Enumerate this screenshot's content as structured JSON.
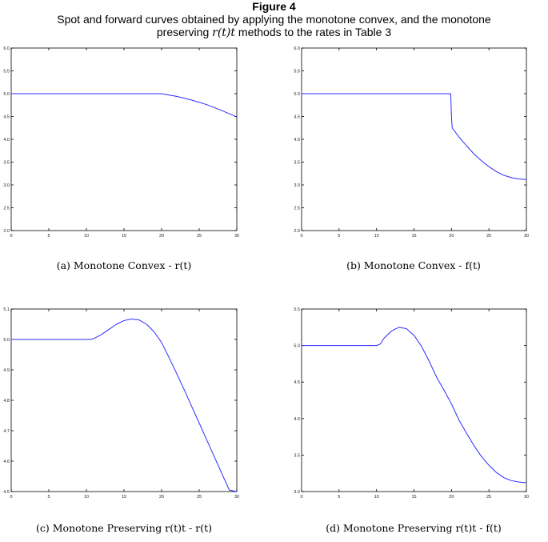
{
  "figure": {
    "title": "Figure 4",
    "caption_line1": "Spot and forward curves obtained by applying the monotone convex, and the monotone",
    "caption_line2_pre": "preserving ",
    "caption_line2_math": "r(t)t",
    "caption_line2_post": " methods to the rates in Table 3"
  },
  "colors": {
    "line": "#2b2bff",
    "axis": "#000000"
  },
  "chart_data": [
    {
      "type": "line",
      "caption": "(a) Monotone Convex - r(t)",
      "xlim": [
        0,
        30
      ],
      "ylim": [
        2.0,
        6.0
      ],
      "xticks": [
        0,
        5,
        10,
        15,
        20,
        25,
        30
      ],
      "yticks": [
        2.0,
        2.5,
        3.0,
        3.5,
        4.0,
        4.5,
        5.0,
        5.5,
        6.0
      ],
      "x": [
        0,
        5,
        10,
        15,
        20,
        21,
        22,
        24,
        26,
        28,
        30
      ],
      "series": [
        {
          "values": [
            5.0,
            5.0,
            5.0,
            5.0,
            5.0,
            4.97,
            4.94,
            4.86,
            4.76,
            4.63,
            4.49
          ]
        }
      ]
    },
    {
      "type": "line",
      "caption": "(b) Monotone Convex - f(t)",
      "xlim": [
        0,
        30
      ],
      "ylim": [
        2.0,
        6.0
      ],
      "xticks": [
        0,
        5,
        10,
        15,
        20,
        25,
        30
      ],
      "yticks": [
        2.0,
        2.5,
        3.0,
        3.5,
        4.0,
        4.5,
        5.0,
        5.5,
        6.0
      ],
      "x": [
        0,
        5,
        10,
        15,
        19.9,
        20,
        20.1,
        21,
        22,
        23,
        24,
        25,
        26,
        27,
        28,
        29,
        30
      ],
      "series": [
        {
          "values": [
            5.0,
            5.0,
            5.0,
            5.0,
            5.0,
            4.5,
            4.25,
            4.05,
            3.86,
            3.68,
            3.53,
            3.4,
            3.29,
            3.21,
            3.16,
            3.13,
            3.12
          ]
        }
      ]
    },
    {
      "type": "line",
      "caption": "(c) Monotone Preserving r(t)t - r(t)",
      "xlim": [
        0,
        30
      ],
      "ylim": [
        4.5,
        5.1
      ],
      "xticks": [
        0,
        5,
        10,
        15,
        20,
        25,
        30
      ],
      "yticks": [
        4.5,
        4.6,
        4.7,
        4.8,
        4.9,
        5.0,
        5.1
      ],
      "x": [
        0,
        5,
        10,
        10.5,
        11,
        12,
        13,
        14,
        15,
        16,
        17,
        18,
        19,
        20,
        21,
        22,
        23,
        24,
        25,
        26,
        27,
        28,
        29,
        30
      ],
      "series": [
        {
          "values": [
            5.0,
            5.0,
            5.0,
            5.0,
            5.003,
            5.016,
            5.033,
            5.05,
            5.062,
            5.067,
            5.064,
            5.05,
            5.025,
            4.99,
            4.94,
            4.888,
            4.835,
            4.78,
            4.725,
            4.67,
            4.615,
            4.56,
            4.505,
            4.5
          ]
        }
      ]
    },
    {
      "type": "line",
      "caption": "(d) Monotone Preserving r(t)t - f(t)",
      "xlim": [
        0,
        30
      ],
      "ylim": [
        3.0,
        5.5
      ],
      "xticks": [
        0,
        5,
        10,
        15,
        20,
        25,
        30
      ],
      "yticks": [
        3.0,
        3.5,
        4.0,
        4.5,
        5.0,
        5.5
      ],
      "x": [
        0,
        5,
        10,
        10.5,
        11,
        12,
        13,
        14,
        15,
        16,
        17,
        18,
        19,
        20,
        21,
        22,
        23,
        24,
        25,
        26,
        27,
        28,
        29,
        30
      ],
      "series": [
        {
          "values": [
            5.0,
            5.0,
            5.0,
            5.02,
            5.1,
            5.2,
            5.25,
            5.23,
            5.14,
            4.99,
            4.79,
            4.57,
            4.39,
            4.2,
            3.98,
            3.8,
            3.63,
            3.48,
            3.36,
            3.26,
            3.19,
            3.15,
            3.13,
            3.12
          ]
        }
      ]
    }
  ]
}
